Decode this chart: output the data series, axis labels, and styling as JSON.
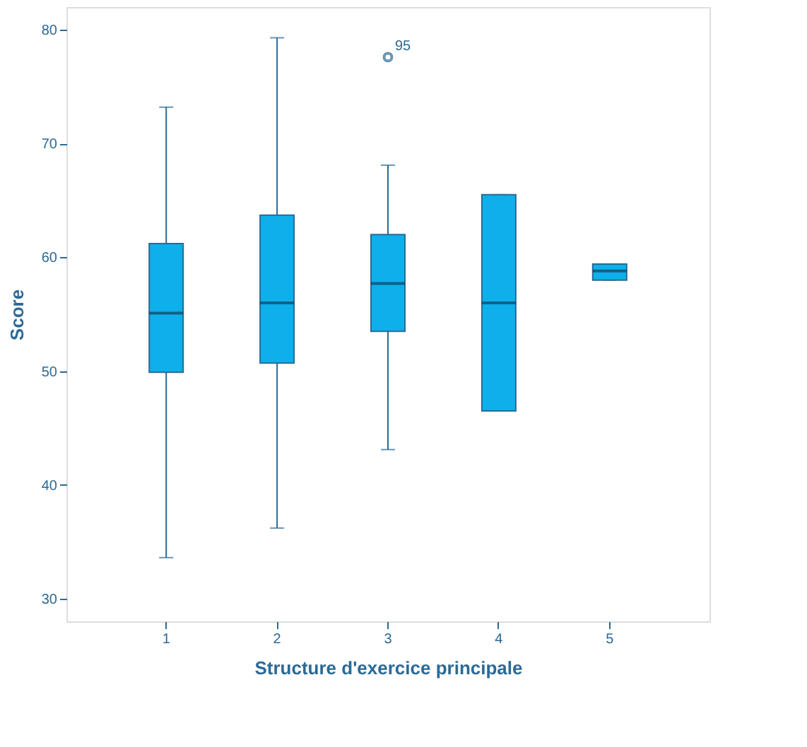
{
  "chart_data": {
    "type": "box",
    "xlabel": "Structure d'exercice principale",
    "ylabel": "Score",
    "categories": [
      "1",
      "2",
      "3",
      "4",
      "5"
    ],
    "ylim": [
      28,
      82
    ],
    "yticks": [
      30,
      40,
      50,
      60,
      70,
      80
    ],
    "grid": false,
    "series": [
      {
        "color": "#0db0ea",
        "boxes": [
          {
            "low": 33.6,
            "q1": 49.9,
            "median": 55.1,
            "q3": 61.2,
            "high": 73.2
          },
          {
            "low": 36.2,
            "q1": 50.7,
            "median": 56.0,
            "q3": 63.7,
            "high": 79.3
          },
          {
            "low": 43.1,
            "q1": 53.5,
            "median": 57.7,
            "q3": 62.0,
            "high": 68.1,
            "outliers": [
              77.6
            ]
          },
          {
            "low": 46.5,
            "q1": 46.5,
            "median": 56.0,
            "q3": 65.5,
            "high": 65.5
          },
          {
            "low": 58.0,
            "q1": 58.0,
            "median": 58.8,
            "q3": 59.4,
            "high": 59.4
          }
        ]
      }
    ],
    "annotations": [
      "95"
    ]
  }
}
